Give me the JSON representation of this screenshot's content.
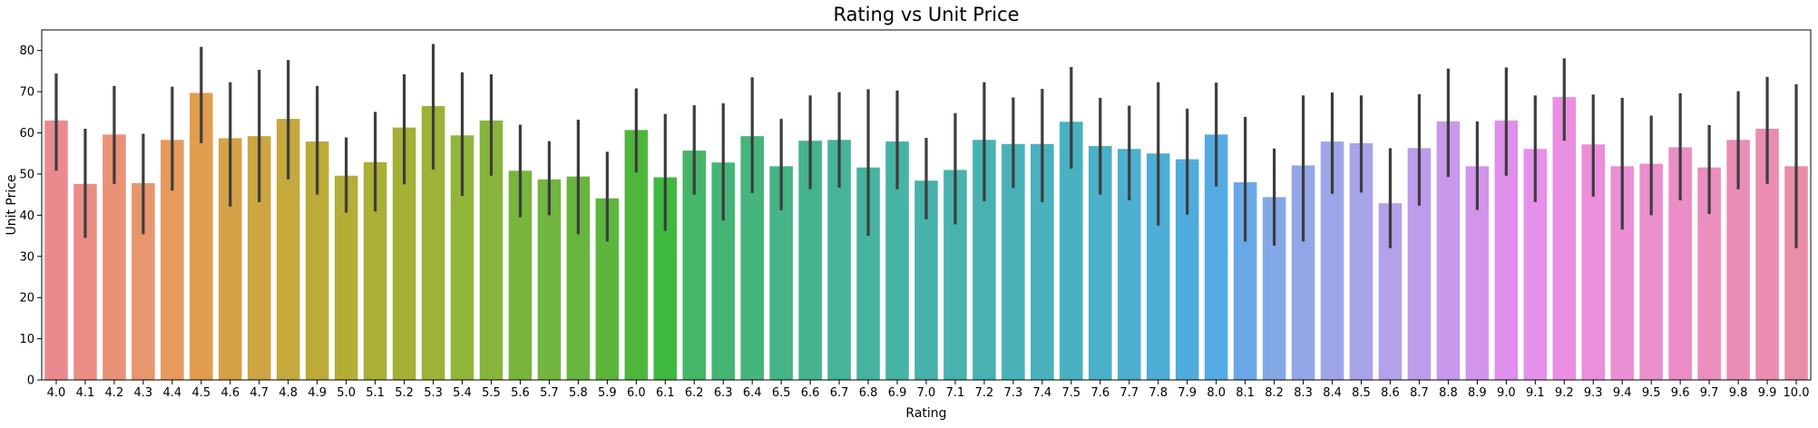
{
  "chart_data": {
    "type": "bar",
    "title": "Rating vs Unit Price",
    "xlabel": "Rating",
    "ylabel": "Unit Price",
    "ylim": [
      0,
      85
    ],
    "yticks": [
      0,
      10,
      20,
      30,
      40,
      50,
      60,
      70,
      80
    ],
    "grid": false,
    "legend": "none",
    "error_bars": true,
    "categories": [
      "4.0",
      "4.1",
      "4.2",
      "4.3",
      "4.4",
      "4.5",
      "4.6",
      "4.7",
      "4.8",
      "4.9",
      "5.0",
      "5.1",
      "5.2",
      "5.3",
      "5.4",
      "5.5",
      "5.6",
      "5.7",
      "5.8",
      "5.9",
      "6.0",
      "6.1",
      "6.2",
      "6.3",
      "6.4",
      "6.5",
      "6.6",
      "6.7",
      "6.8",
      "6.9",
      "7.0",
      "7.1",
      "7.2",
      "7.3",
      "7.4",
      "7.5",
      "7.6",
      "7.7",
      "7.8",
      "7.9",
      "8.0",
      "8.1",
      "8.2",
      "8.3",
      "8.4",
      "8.5",
      "8.6",
      "8.7",
      "8.8",
      "8.9",
      "9.0",
      "9.1",
      "9.2",
      "9.3",
      "9.4",
      "9.5",
      "9.6",
      "9.7",
      "9.8",
      "9.9",
      "10.0"
    ],
    "values": [
      63.0,
      47.6,
      59.6,
      47.8,
      58.3,
      69.7,
      58.7,
      59.2,
      63.4,
      57.9,
      49.6,
      52.9,
      61.3,
      66.5,
      59.4,
      63.0,
      50.8,
      48.7,
      49.4,
      44.1,
      60.7,
      49.2,
      55.7,
      52.8,
      59.2,
      51.9,
      58.1,
      58.3,
      51.6,
      57.9,
      48.4,
      51.0,
      58.3,
      57.3,
      57.3,
      62.7,
      56.8,
      56.1,
      55.0,
      53.6,
      59.6,
      48.0,
      44.4,
      52.1,
      57.9,
      57.5,
      42.9,
      56.3,
      62.8,
      51.9,
      63.0,
      56.1,
      68.7,
      57.2,
      51.9,
      52.5,
      56.5,
      51.6,
      58.3,
      61.0,
      51.9
    ],
    "ci_low": [
      50.8,
      34.5,
      47.6,
      35.4,
      46.0,
      57.5,
      42.1,
      43.2,
      48.7,
      45.0,
      40.6,
      40.9,
      47.5,
      51.1,
      44.7,
      49.6,
      39.5,
      40.0,
      35.4,
      33.6,
      50.4,
      36.2,
      45.0,
      38.7,
      45.4,
      41.2,
      46.3,
      46.7,
      35.0,
      46.3,
      39.0,
      37.8,
      43.4,
      46.6,
      43.2,
      51.3,
      45.0,
      43.6,
      37.5,
      40.1,
      47.0,
      33.6,
      32.6,
      33.6,
      45.2,
      45.5,
      32.0,
      42.3,
      49.3,
      41.3,
      49.6,
      43.2,
      58.1,
      44.5,
      36.5,
      40.0,
      43.6,
      40.3,
      46.3,
      47.6,
      32.0
    ],
    "ci_high": [
      74.4,
      61.0,
      71.4,
      59.8,
      71.2,
      80.9,
      72.3,
      75.3,
      77.7,
      71.4,
      58.9,
      65.1,
      74.2,
      81.6,
      74.7,
      74.2,
      62.0,
      58.0,
      63.2,
      55.4,
      70.8,
      64.6,
      66.7,
      67.2,
      73.5,
      63.4,
      69.1,
      69.9,
      70.6,
      70.3,
      58.8,
      64.8,
      72.3,
      68.6,
      70.7,
      76.0,
      68.5,
      66.6,
      72.3,
      65.9,
      72.2,
      63.9,
      56.2,
      69.1,
      69.8,
      69.1,
      56.3,
      69.4,
      75.6,
      62.8,
      75.9,
      69.1,
      78.1,
      69.3,
      68.5,
      64.2,
      69.6,
      61.9,
      70.1,
      73.6,
      71.8
    ],
    "colors": [
      "#ea8a8f",
      "#ea8e85",
      "#ea9278",
      "#e8966e",
      "#e69a5d",
      "#e29d4e",
      "#d6a248",
      "#cda542",
      "#c5a93e",
      "#bcab38",
      "#b4ad36",
      "#aaaf35",
      "#a4b136",
      "#9cb338",
      "#92b53b",
      "#87b53c",
      "#79b43c",
      "#72b53f",
      "#68b53f",
      "#5cb63c",
      "#4fb63c",
      "#3eb93f",
      "#45b668",
      "#45b576",
      "#45b57b",
      "#45b487",
      "#45b38f",
      "#46b498",
      "#46b39e",
      "#47b3a4",
      "#47b2a9",
      "#48b2ae",
      "#48b2b3",
      "#49b2b8",
      "#49b2bd",
      "#49b1c2",
      "#4bb1c8",
      "#4db0cf",
      "#4daed6",
      "#50acdd",
      "#54abe3",
      "#69a7e6",
      "#83a8e6",
      "#93a6e8",
      "#9ea6e9",
      "#a9a4ea",
      "#b3a1ea",
      "#bd9ceb",
      "#c898eb",
      "#d394eb",
      "#de90ea",
      "#e590ea",
      "#ea8fe2",
      "#eb8edb",
      "#eb8fd4",
      "#eb8ecc",
      "#eb8ec5",
      "#ea8ebe",
      "#ea8db6",
      "#ea8db0",
      "#ea8da8"
    ],
    "error_color": "#3d3d3d"
  }
}
